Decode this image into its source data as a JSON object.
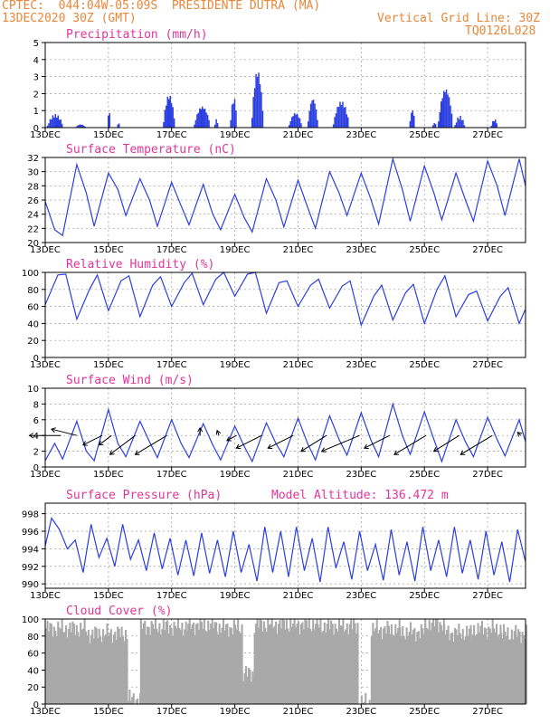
{
  "header": {
    "line1": "CPTEC:  044:04W-05:09S  PRESIDENTE DUTRA (MA)",
    "line2": "13DEC2020 30Z (GMT)",
    "grid_note": "Vertical Grid Line: 30Z",
    "model_code": "TQ0126L028"
  },
  "colors": {
    "header": "#e8873a",
    "title": "#e0359a",
    "series": "#2b3ee0",
    "cloud": "#a9a9a9"
  },
  "chart_data": [
    {
      "type": "bar",
      "title": "Precipitation (mm/h)",
      "ylim": [
        0,
        5
      ],
      "yticks": [
        0,
        1,
        2,
        3,
        4,
        5
      ],
      "x_labels": [
        "13DEC",
        "15DEC",
        "17DEC",
        "19DEC",
        "21DEC",
        "23DEC",
        "25DEC",
        "27DEC"
      ],
      "x_days": [
        0,
        2,
        4,
        6,
        8,
        10,
        12,
        14
      ],
      "x_range_days": [
        0,
        15.2
      ],
      "peaks": [
        {
          "day": 0.3,
          "value": 0.8,
          "width": 0.5
        },
        {
          "day": 1.1,
          "value": 0.2,
          "width": 0.3
        },
        {
          "day": 2.0,
          "value": 1.1,
          "width": 0.05
        },
        {
          "day": 2.3,
          "value": 0.3,
          "width": 0.05
        },
        {
          "day": 3.9,
          "value": 2.0,
          "width": 0.35
        },
        {
          "day": 4.95,
          "value": 1.3,
          "width": 0.5
        },
        {
          "day": 5.4,
          "value": 0.5,
          "width": 0.1
        },
        {
          "day": 5.95,
          "value": 1.8,
          "width": 0.2
        },
        {
          "day": 6.7,
          "value": 3.5,
          "width": 0.35
        },
        {
          "day": 7.9,
          "value": 0.9,
          "width": 0.4
        },
        {
          "day": 8.45,
          "value": 1.8,
          "width": 0.3
        },
        {
          "day": 9.35,
          "value": 1.6,
          "width": 0.5
        },
        {
          "day": 11.6,
          "value": 1.1,
          "width": 0.15
        },
        {
          "day": 12.3,
          "value": 0.3,
          "width": 0.1
        },
        {
          "day": 12.65,
          "value": 2.4,
          "width": 0.45
        },
        {
          "day": 13.1,
          "value": 0.7,
          "width": 0.3
        },
        {
          "day": 14.2,
          "value": 0.5,
          "width": 0.2
        }
      ]
    },
    {
      "type": "line",
      "title": "Surface Temperature (nC)",
      "ylim": [
        20,
        32
      ],
      "yticks": [
        20,
        22,
        24,
        26,
        28,
        30,
        32
      ],
      "x_labels": [
        "13DEC",
        "15DEC",
        "17DEC",
        "19DEC",
        "21DEC",
        "23DEC",
        "25DEC",
        "27DEC"
      ],
      "x_days": [
        0,
        2,
        4,
        6,
        8,
        10,
        12,
        14
      ],
      "x_range_days": [
        0,
        15.2
      ],
      "days": [
        0,
        0.3,
        0.55,
        1.0,
        1.3,
        1.55,
        2.0,
        2.3,
        2.55,
        3.0,
        3.3,
        3.55,
        4.0,
        4.3,
        4.55,
        5.0,
        5.3,
        5.55,
        6.0,
        6.3,
        6.55,
        7.0,
        7.3,
        7.55,
        8.0,
        8.3,
        8.55,
        9.0,
        9.3,
        9.55,
        10.0,
        10.3,
        10.55,
        11.0,
        11.3,
        11.55,
        12.0,
        12.3,
        12.55,
        13.0,
        13.3,
        13.55,
        14.0,
        14.3,
        14.55,
        15.0,
        15.2
      ],
      "values": [
        25.8,
        21.8,
        21.0,
        31.0,
        27.0,
        22.3,
        29.8,
        27.5,
        23.8,
        29.0,
        26.0,
        22.3,
        28.5,
        25.2,
        22.5,
        28.2,
        24.0,
        21.8,
        26.8,
        23.5,
        21.5,
        29.0,
        26.0,
        22.2,
        28.8,
        25.0,
        22.0,
        30.0,
        27.0,
        23.8,
        29.8,
        26.2,
        22.6,
        31.8,
        27.5,
        23.0,
        30.8,
        27.0,
        23.2,
        29.8,
        26.0,
        23.0,
        31.5,
        28.0,
        23.8,
        31.8,
        28.0
      ]
    },
    {
      "type": "line",
      "title": "Relative Humidity (%)",
      "ylim": [
        0,
        100
      ],
      "yticks": [
        0,
        20,
        40,
        60,
        80,
        100
      ],
      "x_labels": [
        "13DEC",
        "15DEC",
        "17DEC",
        "19DEC",
        "21DEC",
        "23DEC",
        "25DEC",
        "27DEC"
      ],
      "x_days": [
        0,
        2,
        4,
        6,
        8,
        10,
        12,
        14
      ],
      "x_range_days": [
        0,
        15.2
      ],
      "days": [
        0,
        0.4,
        0.65,
        1.0,
        1.4,
        1.65,
        2.0,
        2.4,
        2.65,
        3.0,
        3.4,
        3.65,
        4.0,
        4.4,
        4.65,
        5.0,
        5.4,
        5.65,
        6.0,
        6.4,
        6.65,
        7.0,
        7.4,
        7.65,
        8.0,
        8.4,
        8.65,
        9.0,
        9.4,
        9.65,
        10.0,
        10.4,
        10.65,
        11.0,
        11.4,
        11.65,
        12.0,
        12.4,
        12.65,
        13.0,
        13.4,
        13.65,
        14.0,
        14.4,
        14.65,
        15.0,
        15.2
      ],
      "values": [
        62,
        97,
        98,
        45,
        80,
        97,
        55,
        90,
        96,
        48,
        85,
        95,
        60,
        88,
        99,
        62,
        92,
        100,
        72,
        98,
        100,
        52,
        88,
        90,
        60,
        85,
        92,
        58,
        84,
        90,
        38,
        72,
        85,
        44,
        76,
        86,
        40,
        80,
        96,
        48,
        74,
        78,
        43,
        72,
        82,
        40,
        57
      ]
    },
    {
      "type": "line",
      "title": "Surface Wind (m/s)",
      "ylim": [
        0,
        10
      ],
      "yticks": [
        0,
        2,
        4,
        6,
        8,
        10
      ],
      "x_labels": [
        "13DEC",
        "15DEC",
        "17DEC",
        "19DEC",
        "21DEC",
        "23DEC",
        "25DEC",
        "27DEC"
      ],
      "x_days": [
        0,
        2,
        4,
        6,
        8,
        10,
        12,
        14
      ],
      "x_range_days": [
        0,
        15.2
      ],
      "days": [
        0,
        0.3,
        0.55,
        1.0,
        1.3,
        1.55,
        2.0,
        2.3,
        2.55,
        3.0,
        3.3,
        3.55,
        4.0,
        4.3,
        4.55,
        5.0,
        5.3,
        5.55,
        6.0,
        6.3,
        6.55,
        7.0,
        7.3,
        7.55,
        8.0,
        8.3,
        8.55,
        9.0,
        9.3,
        9.55,
        10.0,
        10.3,
        10.55,
        11.0,
        11.3,
        11.55,
        12.0,
        12.3,
        12.55,
        13.0,
        13.3,
        13.55,
        14.0,
        14.3,
        14.55,
        15.0,
        15.2
      ],
      "values": [
        0.8,
        3.0,
        1.0,
        5.8,
        2.0,
        0.8,
        7.3,
        3.0,
        1.3,
        5.8,
        3.2,
        1.2,
        6.0,
        3.0,
        1.2,
        5.5,
        2.8,
        0.9,
        5.2,
        2.6,
        0.7,
        5.6,
        3.0,
        1.3,
        6.2,
        3.0,
        0.9,
        6.5,
        3.5,
        1.5,
        6.9,
        3.5,
        1.3,
        8.0,
        4.0,
        1.6,
        7.0,
        3.5,
        0.7,
        6.0,
        3.2,
        1.3,
        6.3,
        3.5,
        1.4,
        6.0,
        3.2
      ],
      "vectors": [
        {
          "day": 0.5,
          "u": -5,
          "v": 0
        },
        {
          "day": 1.0,
          "u": -4,
          "v": 1
        },
        {
          "day": 1.8,
          "u": -3,
          "v": -1.5
        },
        {
          "day": 2.1,
          "u": -2,
          "v": -1.5
        },
        {
          "day": 2.85,
          "u": -4,
          "v": -3
        },
        {
          "day": 3.85,
          "u": -5,
          "v": -3
        },
        {
          "day": 4.9,
          "u": 0,
          "v": 1.2
        },
        {
          "day": 5.5,
          "u": -0.3,
          "v": 0.8
        },
        {
          "day": 6.05,
          "u": -1.5,
          "v": -0.8
        },
        {
          "day": 6.85,
          "u": -4,
          "v": -2
        },
        {
          "day": 7.85,
          "u": -4,
          "v": -2
        },
        {
          "day": 8.9,
          "u": -4,
          "v": -2.5
        },
        {
          "day": 9.95,
          "u": -6,
          "v": -2.5
        },
        {
          "day": 10.9,
          "u": -4,
          "v": -2
        },
        {
          "day": 12.05,
          "u": -5,
          "v": -3
        },
        {
          "day": 13.1,
          "u": -4,
          "v": -2.5
        },
        {
          "day": 14.15,
          "u": -5,
          "v": -3
        },
        {
          "day": 15.05,
          "u": -0.5,
          "v": 0.5
        }
      ]
    },
    {
      "type": "line",
      "title": "Surface Pressure (hPa)",
      "subtitle": "Model Altitude: 136.472 m",
      "ylim": [
        989.5,
        999.2
      ],
      "yticks": [
        990,
        992,
        994,
        996,
        998
      ],
      "x_labels": [
        "13DEC",
        "15DEC",
        "17DEC",
        "19DEC",
        "21DEC",
        "23DEC",
        "25DEC",
        "27DEC"
      ],
      "x_days": [
        0,
        2,
        4,
        6,
        8,
        10,
        12,
        14
      ],
      "x_range_days": [
        0,
        15.2
      ],
      "days": [
        0,
        0.2,
        0.45,
        0.7,
        0.95,
        1.2,
        1.45,
        1.7,
        1.95,
        2.2,
        2.45,
        2.7,
        2.95,
        3.2,
        3.45,
        3.7,
        3.95,
        4.2,
        4.45,
        4.7,
        4.95,
        5.2,
        5.45,
        5.7,
        5.95,
        6.2,
        6.45,
        6.7,
        6.95,
        7.2,
        7.45,
        7.7,
        7.95,
        8.2,
        8.45,
        8.7,
        8.95,
        9.2,
        9.45,
        9.7,
        9.95,
        10.2,
        10.45,
        10.7,
        10.95,
        11.2,
        11.45,
        11.7,
        11.95,
        12.2,
        12.45,
        12.7,
        12.95,
        13.2,
        13.45,
        13.7,
        13.95,
        14.2,
        14.45,
        14.7,
        14.95,
        15.2
      ],
      "values": [
        994.3,
        997.5,
        996.2,
        994.0,
        995.0,
        991.3,
        996.8,
        993.0,
        995.2,
        992.0,
        996.8,
        992.8,
        995.0,
        991.5,
        995.8,
        991.7,
        995.2,
        991.0,
        995.0,
        990.9,
        995.8,
        991.2,
        995.0,
        990.8,
        996.0,
        991.3,
        994.5,
        990.3,
        996.5,
        991.3,
        996.0,
        990.8,
        996.5,
        991.5,
        995.2,
        990.2,
        996.5,
        991.8,
        994.8,
        990.5,
        996.0,
        991.5,
        994.5,
        990.4,
        996.2,
        991.0,
        994.8,
        990.3,
        996.5,
        991.5,
        995.0,
        990.8,
        996.5,
        991.2,
        995.0,
        990.5,
        996.0,
        991.0,
        994.8,
        990.2,
        996.2,
        992.5
      ]
    },
    {
      "type": "bar",
      "title": "Cloud Cover (%)",
      "ylim": [
        0,
        100
      ],
      "yticks": [
        0,
        20,
        40,
        60,
        80,
        100
      ],
      "x_labels": [
        "13DEC",
        "15DEC",
        "17DEC",
        "19DEC",
        "21DEC",
        "23DEC",
        "25DEC",
        "27DEC"
      ],
      "x_days": [
        0,
        2,
        4,
        6,
        8,
        10,
        12,
        14
      ],
      "x_range_days": [
        0,
        15.2
      ],
      "segments": [
        {
          "from": 0.0,
          "to": 1.3,
          "value": 89
        },
        {
          "from": 1.3,
          "to": 2.6,
          "value": 83
        },
        {
          "from": 2.6,
          "to": 3.0,
          "value": 6
        },
        {
          "from": 3.0,
          "to": 4.5,
          "value": 91
        },
        {
          "from": 4.5,
          "to": 5.4,
          "value": 93
        },
        {
          "from": 5.4,
          "to": 6.2,
          "value": 90
        },
        {
          "from": 6.2,
          "to": 6.6,
          "value": 36
        },
        {
          "from": 6.6,
          "to": 8.6,
          "value": 94
        },
        {
          "from": 8.6,
          "to": 9.9,
          "value": 92
        },
        {
          "from": 9.9,
          "to": 10.3,
          "value": 2
        },
        {
          "from": 10.3,
          "to": 11.2,
          "value": 88
        },
        {
          "from": 11.2,
          "to": 12.0,
          "value": 85
        },
        {
          "from": 12.0,
          "to": 12.6,
          "value": 95
        },
        {
          "from": 12.6,
          "to": 13.5,
          "value": 84
        },
        {
          "from": 13.5,
          "to": 14.4,
          "value": 88
        },
        {
          "from": 14.4,
          "to": 15.2,
          "value": 83
        }
      ]
    }
  ]
}
